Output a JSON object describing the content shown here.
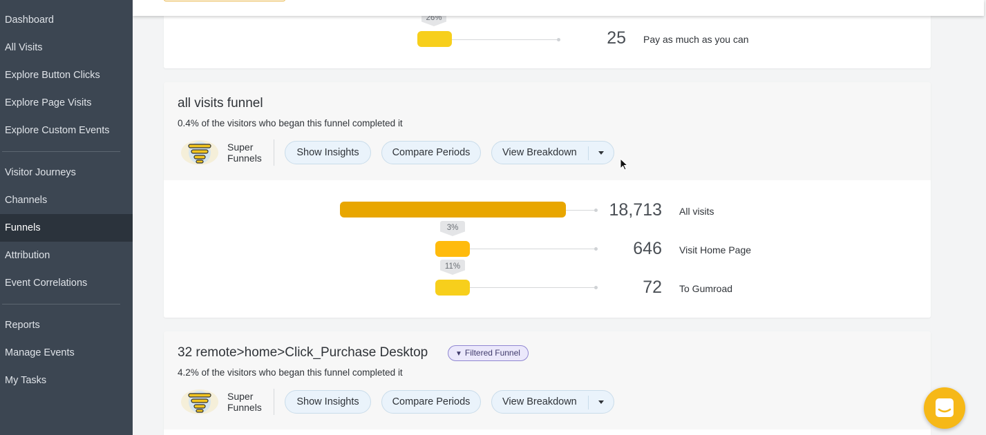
{
  "sidebar": {
    "items": [
      {
        "label": "Dashboard"
      },
      {
        "label": "All Visits"
      },
      {
        "label": "Explore Button Clicks"
      },
      {
        "label": "Explore Page Visits"
      },
      {
        "label": "Explore Custom Events"
      },
      {
        "label": "Visitor Journeys"
      },
      {
        "label": "Channels"
      },
      {
        "label": "Funnels",
        "active": true
      },
      {
        "label": "Attribution"
      },
      {
        "label": "Event Correlations"
      },
      {
        "label": "Reports"
      },
      {
        "label": "Manage Events"
      },
      {
        "label": "My Tasks"
      }
    ]
  },
  "funnels": [
    {
      "steps": [
        {
          "pct_tag": "26%",
          "count": "25",
          "label": "Pay as much as you can"
        }
      ]
    },
    {
      "title": "all visits funnel",
      "subtitle": "0.4% of the visitors who began this funnel completed it",
      "super_funnels_label": "Super\nFunnels",
      "buttons": {
        "insights": "Show Insights",
        "compare": "Compare Periods",
        "breakdown": "View Breakdown"
      },
      "steps": [
        {
          "count": "18,713",
          "label": "All visits",
          "share": 1.0,
          "color": "#e8a600"
        },
        {
          "pct_tag": "3%",
          "count": "646",
          "label": "Visit Home Page",
          "share": 0.034,
          "color": "#ffbb0d"
        },
        {
          "pct_tag": "11%",
          "count": "72",
          "label": "To Gumroad",
          "share": 0.004,
          "color": "#f7cf1c"
        }
      ]
    },
    {
      "title": "32 remote>home>Click_Purchase Desktop",
      "badge": "Filtered Funnel",
      "subtitle": "4.2% of the visitors who began this funnel completed it",
      "super_funnels_label": "Super\nFunnels",
      "buttons": {
        "insights": "Show Insights",
        "compare": "Compare Periods",
        "breakdown": "View Breakdown"
      }
    }
  ],
  "colors": {
    "sidebar": "#3c4652",
    "sidebar_active": "#2b333c",
    "accent": "#f6b817"
  }
}
